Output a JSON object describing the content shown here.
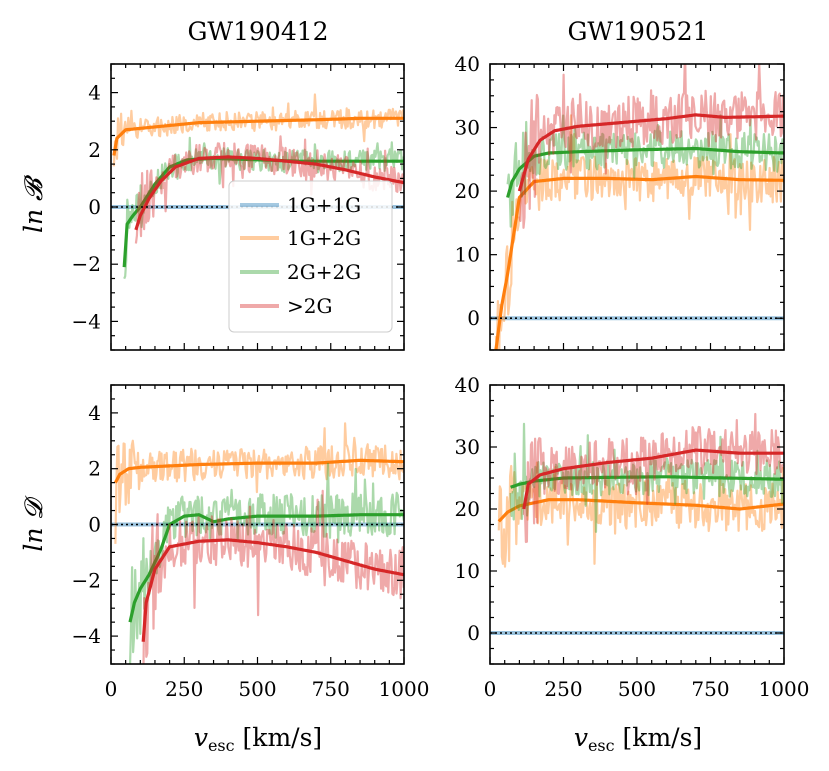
{
  "chart_data": [
    {
      "type": "line",
      "title": "GW190412",
      "ylabel": "ln 𝓑",
      "xlabel": "",
      "xlim": [
        0,
        1000
      ],
      "ylim": [
        -5,
        5
      ],
      "yticks": [
        -4,
        -2,
        0,
        2,
        4
      ],
      "xticks": [
        0,
        250,
        500,
        750,
        1000
      ],
      "series": [
        {
          "name": "1G+1G",
          "color": "#1f77b4",
          "noise": 0,
          "x": [
            0,
            1000
          ],
          "values": [
            0,
            0
          ]
        },
        {
          "name": "1G+2G",
          "color": "#ff7f0e",
          "noise": 0.35,
          "x": [
            10,
            20,
            50,
            100,
            150,
            200,
            300,
            500,
            700,
            850,
            1000
          ],
          "values": [
            1.8,
            2.4,
            2.7,
            2.75,
            2.8,
            2.85,
            2.95,
            3.0,
            3.05,
            3.1,
            3.1
          ]
        },
        {
          "name": "2G+2G",
          "color": "#2ca02c",
          "noise": 0.4,
          "x": [
            45,
            55,
            75,
            100,
            150,
            200,
            260,
            350,
            500,
            650,
            800,
            1000
          ],
          "values": [
            -2.1,
            -0.6,
            -0.3,
            0.0,
            0.8,
            1.4,
            1.65,
            1.7,
            1.65,
            1.6,
            1.6,
            1.6
          ]
        },
        {
          "name": ">2G",
          "color": "#d62728",
          "noise": 0.5,
          "x": [
            85,
            100,
            130,
            170,
            220,
            300,
            400,
            500,
            600,
            700,
            800,
            900,
            1000
          ],
          "values": [
            -0.8,
            -0.3,
            0.3,
            0.9,
            1.4,
            1.7,
            1.75,
            1.7,
            1.6,
            1.5,
            1.3,
            1.05,
            0.85
          ]
        }
      ],
      "legend": {
        "position": "center-right",
        "entries": [
          "1G+1G",
          "1G+2G",
          "2G+2G",
          ">2G"
        ]
      }
    },
    {
      "type": "line",
      "title": "GW190521",
      "ylabel": "",
      "xlabel": "",
      "xlim": [
        0,
        1000
      ],
      "ylim": [
        -5,
        40
      ],
      "yticks": [
        0,
        10,
        20,
        30,
        40
      ],
      "xticks": [
        0,
        250,
        500,
        750,
        1000
      ],
      "series": [
        {
          "name": "1G+1G",
          "color": "#1f77b4",
          "noise": 0,
          "x": [
            0,
            1000
          ],
          "values": [
            0,
            0
          ]
        },
        {
          "name": "1G+2G",
          "color": "#ff7f0e",
          "noise": 3.5,
          "x": [
            20,
            40,
            60,
            80,
            100,
            150,
            250,
            400,
            550,
            700,
            850,
            1000
          ],
          "values": [
            -5,
            2,
            7,
            13,
            19,
            21.5,
            22,
            22,
            21.8,
            22.3,
            21.8,
            21.7
          ]
        },
        {
          "name": "2G+2G",
          "color": "#2ca02c",
          "noise": 3.0,
          "x": [
            60,
            75,
            100,
            150,
            200,
            300,
            500,
            700,
            850,
            1000
          ],
          "values": [
            19,
            21.5,
            23.5,
            25.5,
            26,
            26.2,
            26.5,
            26.7,
            26.2,
            26
          ]
        },
        {
          "name": ">2G",
          "color": "#d62728",
          "noise": 4.0,
          "x": [
            100,
            130,
            170,
            220,
            300,
            450,
            600,
            700,
            800,
            900,
            1000
          ],
          "values": [
            20,
            25,
            28,
            29.5,
            30.2,
            30.8,
            31.4,
            32,
            31.6,
            31.7,
            31.8
          ]
        }
      ]
    },
    {
      "type": "line",
      "title": "",
      "ylabel": "ln 𝓓",
      "xlabel": "v_esc [km/s]",
      "xlim": [
        0,
        1000
      ],
      "ylim": [
        -5,
        5
      ],
      "yticks": [
        -4,
        -2,
        0,
        2,
        4
      ],
      "xticks": [
        0,
        250,
        500,
        750,
        1000
      ],
      "series": [
        {
          "name": "1G+1G",
          "color": "#1f77b4",
          "noise": 0,
          "x": [
            0,
            1000
          ],
          "values": [
            0,
            0
          ]
        },
        {
          "name": "1G+2G",
          "color": "#ff7f0e",
          "noise": 0.6,
          "x": [
            15,
            30,
            60,
            100,
            200,
            300,
            500,
            700,
            850,
            1000
          ],
          "values": [
            1.5,
            1.8,
            2.0,
            2.05,
            2.1,
            2.15,
            2.2,
            2.2,
            2.3,
            2.25
          ]
        },
        {
          "name": "2G+2G",
          "color": "#2ca02c",
          "noise": 0.8,
          "x": [
            65,
            80,
            100,
            130,
            170,
            200,
            250,
            300,
            350,
            400,
            500,
            700,
            850,
            1000
          ],
          "values": [
            -3.5,
            -2.8,
            -2.3,
            -1.8,
            -0.9,
            0.0,
            0.3,
            0.35,
            0.1,
            0.2,
            0.3,
            0.3,
            0.35,
            0.35
          ]
        },
        {
          "name": ">2G",
          "color": "#d62728",
          "noise": 0.9,
          "x": [
            110,
            120,
            150,
            200,
            300,
            400,
            500,
            600,
            700,
            800,
            900,
            1000
          ],
          "values": [
            -4.2,
            -2.8,
            -1.6,
            -0.8,
            -0.6,
            -0.55,
            -0.65,
            -0.8,
            -1.0,
            -1.3,
            -1.6,
            -1.8
          ]
        }
      ]
    },
    {
      "type": "line",
      "title": "",
      "ylabel": "",
      "xlabel": "v_esc [km/s]",
      "xlim": [
        0,
        1000
      ],
      "ylim": [
        -5,
        40
      ],
      "yticks": [
        0,
        10,
        20,
        30,
        40
      ],
      "xticks": [
        0,
        250,
        500,
        750,
        1000
      ],
      "series": [
        {
          "name": "1G+1G",
          "color": "#1f77b4",
          "noise": 0,
          "x": [
            0,
            1000
          ],
          "values": [
            0,
            0
          ]
        },
        {
          "name": "1G+2G",
          "color": "#ff7f0e",
          "noise": 4.0,
          "x": [
            30,
            60,
            100,
            200,
            300,
            500,
            700,
            850,
            1000
          ],
          "values": [
            18,
            19.5,
            20.5,
            21.5,
            21.5,
            21,
            20.6,
            20,
            20.8
          ]
        },
        {
          "name": "2G+2G",
          "color": "#2ca02c",
          "noise": 3.0,
          "x": [
            70,
            100,
            150,
            250,
            400,
            600,
            800,
            1000
          ],
          "values": [
            23.5,
            24,
            24.5,
            25,
            25.1,
            25.2,
            25,
            24.8
          ]
        },
        {
          "name": ">2G",
          "color": "#d62728",
          "noise": 4.0,
          "x": [
            115,
            130,
            170,
            250,
            400,
            550,
            700,
            850,
            1000
          ],
          "values": [
            20,
            24,
            25.5,
            26.5,
            27.5,
            28.2,
            29.5,
            29,
            29
          ]
        }
      ]
    }
  ]
}
